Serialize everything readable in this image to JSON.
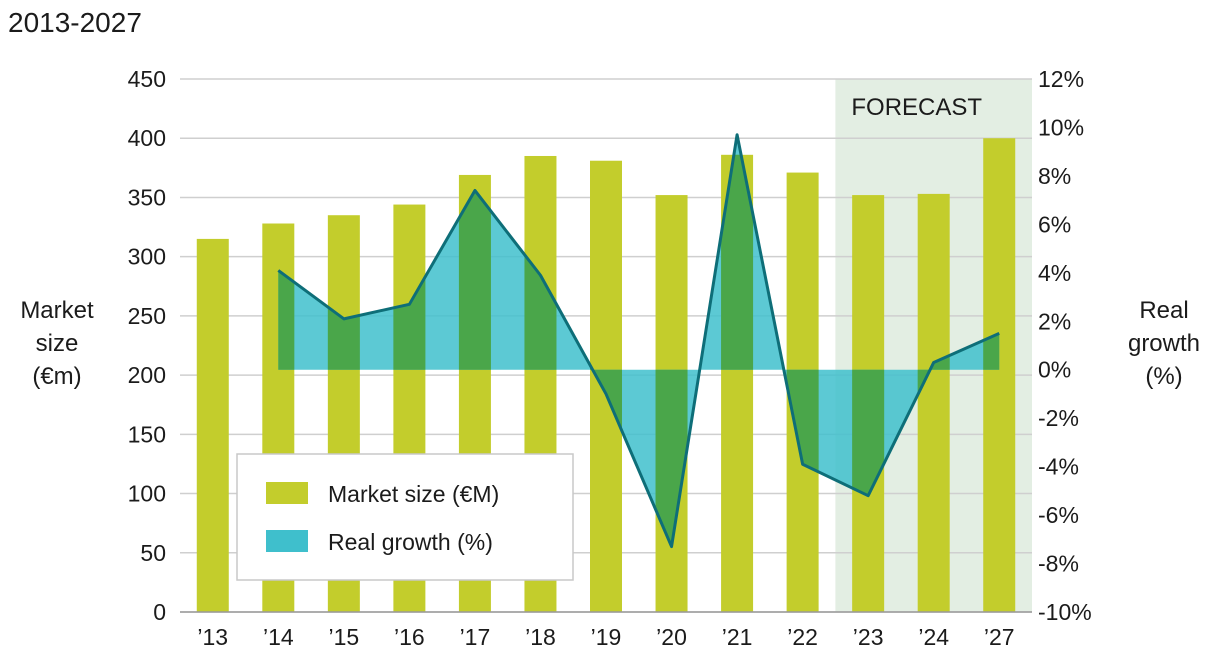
{
  "chart_data": {
    "type": "bar",
    "title": "2013-2027",
    "categories": [
      "’13",
      "’14",
      "’15",
      "’16",
      "’17",
      "’18",
      "’19",
      "’20",
      "’21",
      "’22",
      "’23",
      "’24",
      "’27"
    ],
    "series": [
      {
        "name": "Market size (€M)",
        "type": "bar",
        "axis": "left",
        "color": "#c3cd2c",
        "values": [
          315,
          328,
          335,
          344,
          369,
          385,
          381,
          352,
          386,
          371,
          352,
          353,
          400
        ]
      },
      {
        "name": "Real growth (%)",
        "type": "area",
        "axis": "right",
        "color": "#3fbfcc",
        "line_color": "#0e6e78",
        "values": [
          null,
          4.1,
          2.1,
          2.7,
          7.4,
          3.9,
          -1.0,
          -7.3,
          9.7,
          -3.9,
          -5.2,
          0.3,
          1.5
        ]
      }
    ],
    "left_axis": {
      "label_lines": [
        "Market",
        "size",
        "(€m)"
      ],
      "ylim": [
        0,
        450
      ],
      "ticks": [
        "0",
        "50",
        "100",
        "150",
        "200",
        "250",
        "300",
        "350",
        "400",
        "450"
      ]
    },
    "right_axis": {
      "label_lines": [
        "Real",
        "growth",
        "(%)"
      ],
      "ylim": [
        -10,
        12
      ],
      "ticks": [
        "-10%",
        "-8%",
        "-6%",
        "-4%",
        "-2%",
        "0%",
        "2%",
        "4%",
        "6%",
        "8%",
        "10%",
        "12%"
      ]
    },
    "forecast": {
      "label": "FORECAST",
      "start_category_index": 10,
      "end_category_index": 12,
      "color": "#e3eee3"
    },
    "legend": {
      "placement": "bottom-left",
      "items": [
        "Market size (€M)",
        "Real growth (%)"
      ]
    },
    "overlap_color": "#4aa64a",
    "grid": true,
    "gridline_color": "#cfcfcf"
  }
}
